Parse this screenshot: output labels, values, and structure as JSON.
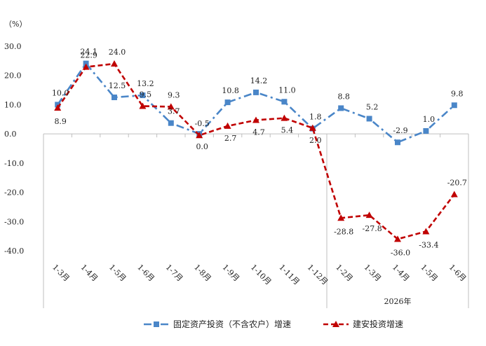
{
  "chart_data": {
    "type": "line",
    "unit_label": "（%）",
    "categories": [
      "1-3月",
      "1-4月",
      "1-5月",
      "1-6月",
      "1-7月",
      "1-8月",
      "1-9月",
      "1-10月",
      "1-11月",
      "1-12月",
      "1-2月",
      "1-3月",
      "1-4月",
      "1-5月",
      "1-6月"
    ],
    "group_label": "2026年",
    "group_start_index": 10,
    "ylim": [
      -40,
      30
    ],
    "yticks": [
      "30.0",
      "20.0",
      "10.0",
      "0.0",
      "-10.0",
      "-20.0",
      "-30.0",
      "-40.0"
    ],
    "series": [
      {
        "name": "固定资产投资（不含农户）增速",
        "color": "#4a86c8",
        "style": "dashdot",
        "marker": "square",
        "values": [
          10.0,
          24.1,
          12.5,
          13.2,
          3.7,
          0.0,
          10.8,
          14.2,
          11.0,
          1.8,
          8.8,
          5.2,
          -2.9,
          1.0,
          9.8
        ],
        "labels": [
          "10.0",
          "24.1",
          "12.5",
          "13.2",
          "3.7",
          "0.0",
          "10.8",
          "14.2",
          "11.0",
          "1.8",
          "8.8",
          "5.2",
          "-2.9",
          "1.0",
          "9.8"
        ]
      },
      {
        "name": "建安投资增速",
        "color": "#c00000",
        "style": "dashed",
        "marker": "triangle",
        "values": [
          8.9,
          22.9,
          24.0,
          9.5,
          9.3,
          -0.5,
          2.7,
          4.7,
          5.4,
          2.0,
          -28.8,
          -27.8,
          -36.0,
          -33.4,
          -20.7
        ],
        "labels": [
          "8.9",
          "22.9",
          "24.0",
          "9.5",
          "9.3",
          "-0.5",
          "2.7",
          "4.7",
          "5.4",
          "2.0",
          "-28.8",
          "-27.8",
          "-36.0",
          "-33.4",
          "-20.7"
        ]
      }
    ],
    "legend_position": "bottom-center"
  }
}
